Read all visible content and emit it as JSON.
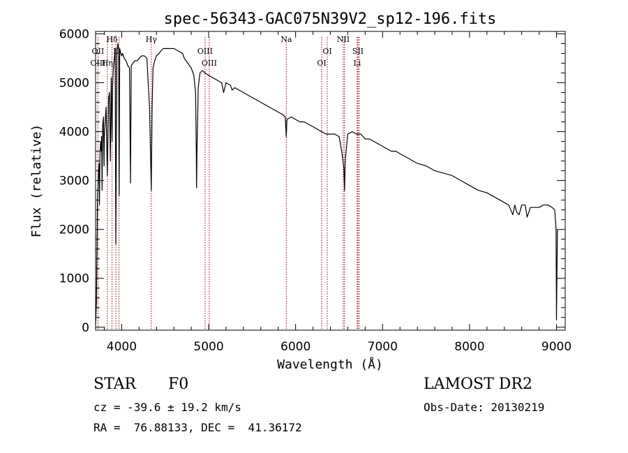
{
  "chart_data": {
    "type": "line",
    "title": "spec-56343-GAC075N39V2_sp12-196.fits",
    "xlabel": "Wavelength (Å)",
    "ylabel": "Flux (relative)",
    "xlim": [
      3700,
      9100
    ],
    "ylim": [
      -60,
      6050
    ],
    "xticks": [
      4000,
      5000,
      6000,
      7000,
      8000,
      9000
    ],
    "yticks": [
      0,
      1000,
      2000,
      3000,
      4000,
      5000,
      6000
    ],
    "xtick_labels": [
      "4000",
      "5000",
      "6000",
      "7000",
      "8000",
      "9000"
    ],
    "ytick_labels": [
      "0",
      "1000",
      "2000",
      "3000",
      "4000",
      "5000",
      "6000"
    ],
    "series": [
      {
        "name": "spectrum",
        "x": [
          3700,
          3710,
          3722,
          3732,
          3740,
          3745,
          3750,
          3758,
          3765,
          3770,
          3775,
          3780,
          3790,
          3797,
          3800,
          3810,
          3820,
          3835,
          3850,
          3860,
          3870,
          3880,
          3889,
          3895,
          3905,
          3915,
          3925,
          3933,
          3945,
          3955,
          3965,
          3970,
          3978,
          3990,
          4000,
          4010,
          4030,
          4050,
          4070,
          4090,
          4101,
          4110,
          4130,
          4150,
          4180,
          4200,
          4230,
          4260,
          4290,
          4320,
          4340,
          4350,
          4360,
          4380,
          4400,
          4430,
          4450,
          4480,
          4500,
          4530,
          4560,
          4600,
          4650,
          4700,
          4720,
          4760,
          4800,
          4830,
          4850,
          4858,
          4861,
          4866,
          4880,
          4900,
          4930,
          4960,
          5000,
          5050,
          5100,
          5150,
          5172,
          5200,
          5250,
          5270,
          5300,
          5350,
          5400,
          5450,
          5500,
          5550,
          5600,
          5650,
          5700,
          5750,
          5800,
          5850,
          5880,
          5893,
          5900,
          5950,
          6000,
          6050,
          6100,
          6150,
          6200,
          6250,
          6300,
          6350,
          6400,
          6450,
          6500,
          6530,
          6555,
          6563,
          6570,
          6600,
          6650,
          6700,
          6750,
          6800,
          6850,
          6900,
          6950,
          7000,
          7050,
          7100,
          7150,
          7200,
          7300,
          7400,
          7500,
          7600,
          7700,
          7800,
          7900,
          8000,
          8100,
          8200,
          8300,
          8400,
          8450,
          8498,
          8520,
          8542,
          8570,
          8600,
          8640,
          8662,
          8700,
          8750,
          8800,
          8850,
          8900,
          8950,
          8980,
          8995,
          9000,
          9010
        ],
        "y": [
          60,
          500,
          2600,
          3100,
          3350,
          2500,
          3500,
          3800,
          3600,
          3900,
          2800,
          4100,
          4300,
          3300,
          3900,
          4200,
          4500,
          3100,
          4700,
          4800,
          3400,
          5100,
          3800,
          4900,
          5300,
          5500,
          5700,
          1700,
          5600,
          5800,
          5700,
          2700,
          5700,
          5600,
          5550,
          5600,
          5500,
          5450,
          5350,
          5300,
          2950,
          5350,
          5400,
          5450,
          5450,
          5500,
          5550,
          5550,
          5500,
          4500,
          2800,
          4500,
          5300,
          5450,
          5550,
          5600,
          5650,
          5700,
          5700,
          5700,
          5700,
          5700,
          5650,
          5600,
          5500,
          5400,
          5300,
          5150,
          4800,
          3600,
          2850,
          3600,
          4900,
          5200,
          5250,
          5200,
          5150,
          5100,
          5050,
          5000,
          4800,
          5000,
          4950,
          4850,
          4900,
          4850,
          4800,
          4750,
          4700,
          4650,
          4600,
          4550,
          4500,
          4450,
          4400,
          4350,
          4300,
          3900,
          4250,
          4300,
          4250,
          4200,
          4200,
          4150,
          4100,
          4050,
          4000,
          3950,
          3950,
          3950,
          3900,
          3600,
          3250,
          2800,
          3400,
          3950,
          4000,
          3950,
          3950,
          3850,
          3850,
          3800,
          3750,
          3700,
          3650,
          3600,
          3600,
          3550,
          3450,
          3350,
          3300,
          3200,
          3150,
          3100,
          3000,
          2900,
          2800,
          2750,
          2650,
          2550,
          2500,
          2300,
          2500,
          2350,
          2300,
          2500,
          2500,
          2250,
          2450,
          2450,
          2450,
          2500,
          2500,
          2450,
          2400,
          2000,
          150,
          2000
        ]
      }
    ],
    "line_markers": [
      {
        "label": "Hδ",
        "x": 3889,
        "row": 0
      },
      {
        "label": "Hγ",
        "x": 4340,
        "row": 0
      },
      {
        "label": "OII",
        "x": 3727,
        "row": 1
      },
      {
        "label": "E",
        "x": 3934,
        "row": 1
      },
      {
        "label": "OIII",
        "x": 3727,
        "row": 2
      },
      {
        "label": "Hη",
        "x": 3835,
        "row": 2
      },
      {
        "label": "OIII",
        "x": 4959,
        "row": 1
      },
      {
        "label": "OIII",
        "x": 5007,
        "row": 2
      },
      {
        "label": "Na",
        "x": 5893,
        "row": 0
      },
      {
        "label": "OI",
        "x": 6300,
        "row": 2
      },
      {
        "label": "OI",
        "x": 6364,
        "row": 1
      },
      {
        "label": "NII",
        "x": 6548,
        "row": 0
      },
      {
        "label": "SII",
        "x": 6717,
        "row": 1
      },
      {
        "label": "Li",
        "x": 6708,
        "row": 2
      }
    ],
    "marker_lines_x": [
      3727,
      3835,
      3889,
      3934,
      3969,
      4340,
      4959,
      5007,
      5893,
      6300,
      6364,
      6548,
      6563,
      6708,
      6717,
      6731
    ]
  },
  "info": {
    "object_class": "STAR",
    "subclass": "F0",
    "survey": "LAMOST DR2",
    "cz": "cz = -39.6 ± 19.2 km/s",
    "obs_date": "Obs-Date: 20130219",
    "radec": "RA =  76.88133, DEC =  41.36172"
  },
  "colors": {
    "marker_line": "#8b0000",
    "spectrum": "#000000",
    "axes": "#000000"
  }
}
